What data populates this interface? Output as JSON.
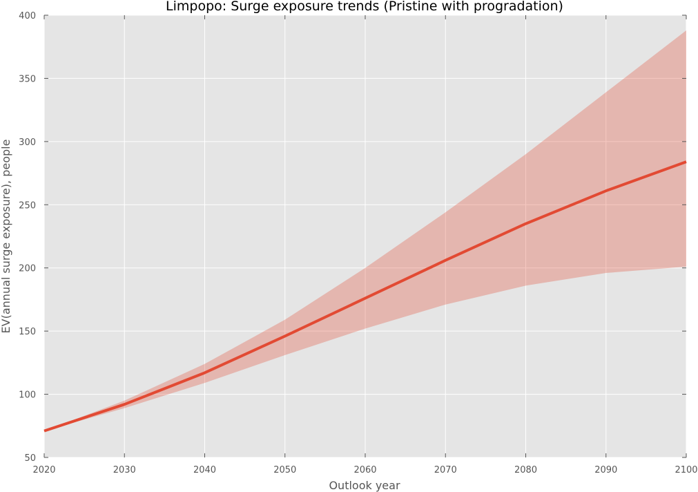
{
  "chart_data": {
    "type": "line",
    "title": "Limpopo: Surge exposure trends (Pristine with progradation)",
    "xlabel": "Outlook year",
    "ylabel": "EV(annual surge exposure), people",
    "xlim": [
      2020,
      2100
    ],
    "ylim": [
      50,
      400
    ],
    "x_ticks": [
      "2020",
      "2030",
      "2040",
      "2050",
      "2060",
      "2070",
      "2080",
      "2090",
      "2100"
    ],
    "y_ticks": [
      "50",
      "100",
      "150",
      "200",
      "250",
      "300",
      "350",
      "400"
    ],
    "grid": true,
    "x": [
      2020,
      2030,
      2040,
      2050,
      2060,
      2070,
      2080,
      2090,
      2100
    ],
    "series": [
      {
        "values": [
          71,
          92,
          117,
          146,
          176,
          206,
          235,
          261,
          284
        ],
        "lower": [
          71,
          89,
          109,
          131,
          152,
          171,
          186,
          196,
          201
        ],
        "upper": [
          71,
          95,
          124,
          159,
          200,
          244,
          290,
          339,
          388
        ],
        "color": "#E24A33",
        "band_color": "#E24A33"
      }
    ],
    "background_color": "#E5E5E5"
  }
}
